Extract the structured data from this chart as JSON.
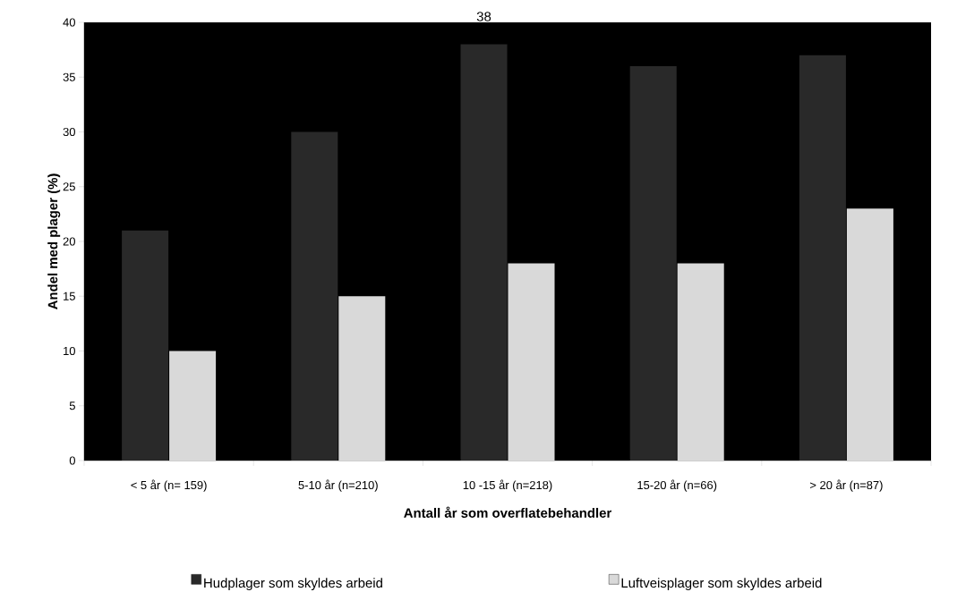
{
  "chart_data": {
    "type": "bar",
    "xlabel": "Antall år som overflatebehandler",
    "ylabel": "Andel med plager (%)",
    "categories": [
      "< 5 år (n= 159)",
      "5-10 år (n=210)",
      "10 -15 år (n=218)",
      "15-20 år (n=66)",
      "> 20 år (n=87)"
    ],
    "series": [
      {
        "name": "Hudplager som skyldes arbeid",
        "color": "#292929",
        "values": [
          21,
          30,
          38,
          36,
          37
        ],
        "value_labels": [
          null,
          null,
          "38",
          null,
          null
        ]
      },
      {
        "name": "Luftveisplager som skyldes arbeid",
        "color": "#d9d9d9",
        "values": [
          10,
          15,
          18,
          18,
          23
        ]
      }
    ],
    "ylim": [
      0,
      40
    ],
    "yticks": [
      0,
      5,
      10,
      15,
      20,
      25,
      30,
      35,
      40
    ],
    "legend": "bottom"
  }
}
